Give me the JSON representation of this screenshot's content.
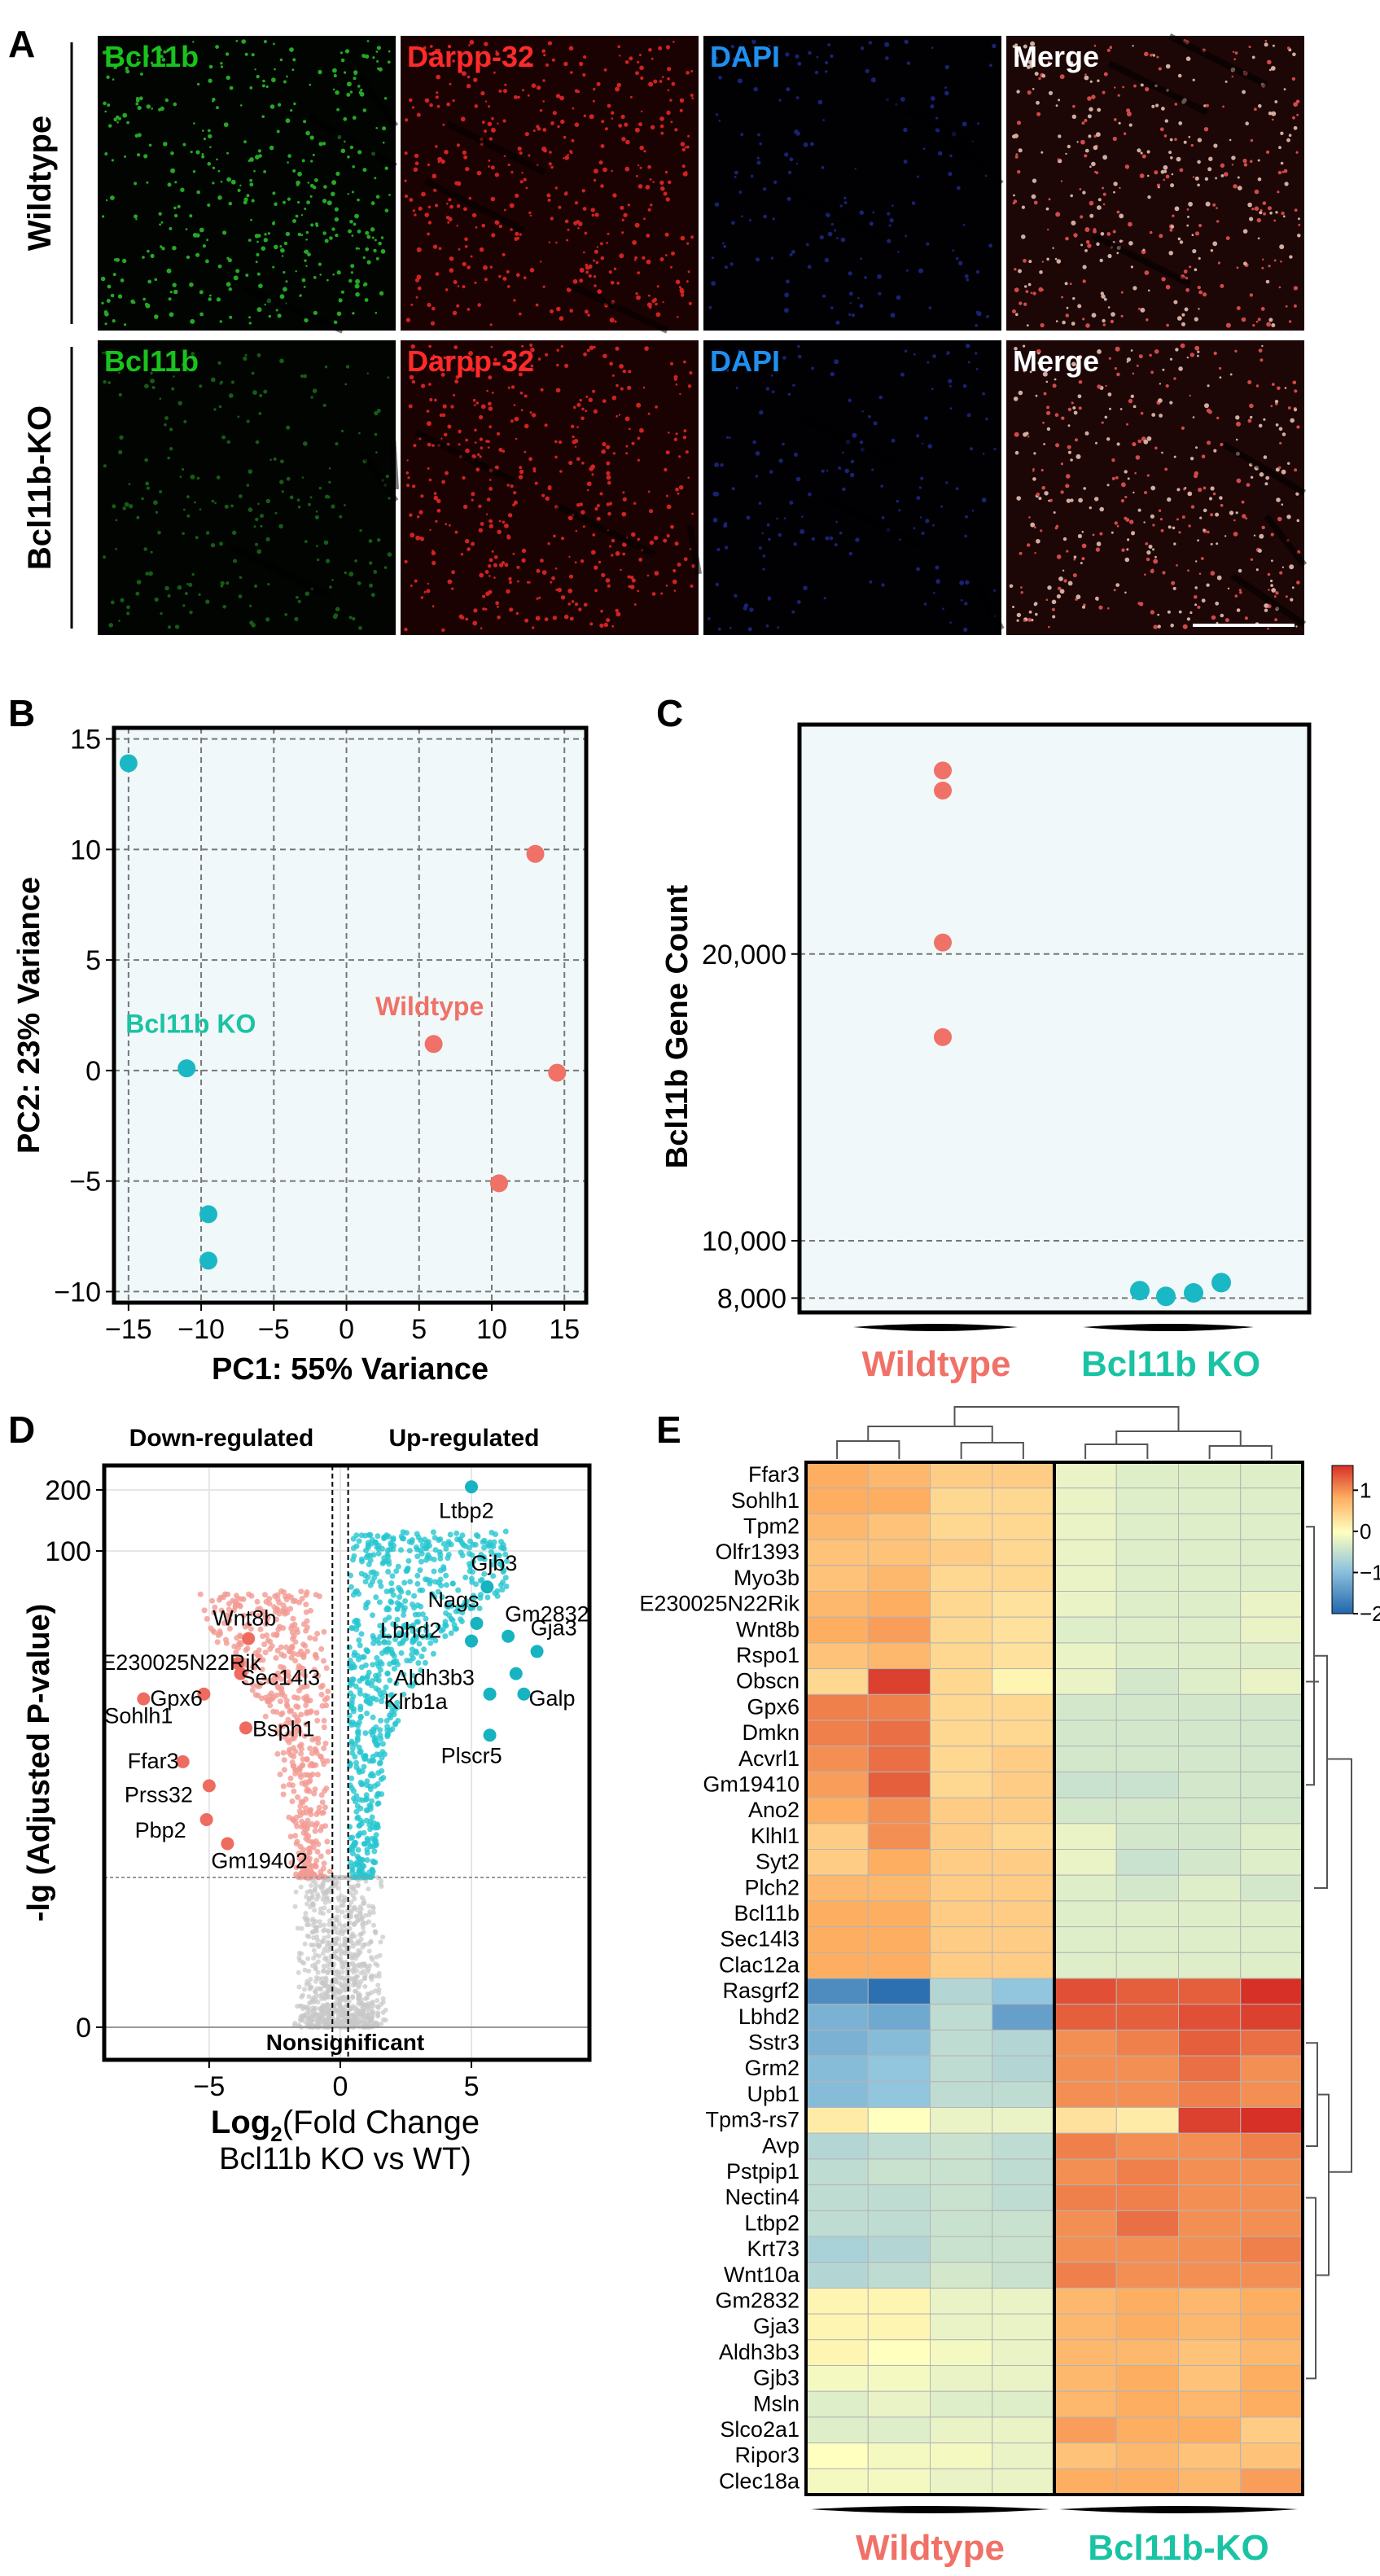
{
  "panelA": {
    "letter": "A",
    "rows": [
      "Wildtype",
      "Bcl11b-KO"
    ],
    "channels": [
      {
        "label": "Bcl11b",
        "color": "#19c21c"
      },
      {
        "label": "Darpp-32",
        "color": "#ff2a2a"
      },
      {
        "label": "DAPI",
        "color": "#1f8ff0"
      },
      {
        "label": "Merge",
        "color": "#ffffff"
      }
    ]
  },
  "panelB": {
    "letter": "B"
  },
  "panelC": {
    "letter": "C"
  },
  "panelD": {
    "letter": "D",
    "down_label": "Down-regulated",
    "up_label": "Up-regulated",
    "nonsig_label": "Nonsignificant"
  },
  "panelE": {
    "letter": "E"
  },
  "colors": {
    "wildtype": "#f07167",
    "ko": "#1ab8c4",
    "ko_text": "#19c3a3",
    "grey": "#c8c8c8"
  },
  "chart_data": [
    {
      "id": "pca",
      "type": "scatter",
      "title": "",
      "xlabel": "PC1: 55% Variance",
      "ylabel": "PC2: 23% Variance",
      "xlim": [
        -16,
        16.5
      ],
      "ylim": [
        -10.5,
        15.5
      ],
      "xticks": [
        -15,
        -10,
        -5,
        0,
        5,
        10,
        15
      ],
      "yticks": [
        -10,
        -5,
        0,
        5,
        10,
        15
      ],
      "xtick_labels": [
        "−15",
        "−10",
        "−5",
        "0",
        "5",
        "10",
        "15"
      ],
      "ytick_labels": [
        "−10",
        "−5",
        "0",
        "5",
        "10",
        "15"
      ],
      "grid": true,
      "series": [
        {
          "name": "Wildtype",
          "x": [
            13,
            6,
            14.5,
            10.5
          ],
          "y": [
            9.8,
            1.2,
            -0.1,
            -5.1
          ]
        },
        {
          "name": "Bcl11b KO",
          "x": [
            -15,
            -11,
            -9.5,
            -9.5
          ],
          "y": [
            13.9,
            0.1,
            -6.5,
            -8.6
          ]
        }
      ],
      "annotations": [
        "Wildtype",
        "Bcl11b KO"
      ]
    },
    {
      "id": "gene_count",
      "type": "scatter",
      "ylabel": "Bcl11b Gene Count",
      "categories": [
        "Wildtype",
        "Bcl11b KO"
      ],
      "ylim": [
        7500,
        28000
      ],
      "yticks": [
        8000,
        10000,
        20000
      ],
      "ytick_labels": [
        "8,000",
        "10,000",
        "20,000"
      ],
      "grid": true,
      "series": [
        {
          "name": "Wildtype",
          "values": [
            26400,
            25700,
            20400,
            17100
          ]
        },
        {
          "name": "Bcl11b KO",
          "values": [
            8260,
            8060,
            8180,
            8540
          ]
        }
      ]
    },
    {
      "id": "volcano",
      "type": "scatter",
      "xlabel_main": "Log",
      "xlabel_sub": "2",
      "xlabel_rest": "(Fold Change",
      "xlabel_line2": "Bcl11b KO vs WT)",
      "ylabel": "-lg (Adjusted P-value)",
      "xlim": [
        -9,
        9.5
      ],
      "xticks": [
        -5,
        0,
        5
      ],
      "xtick_labels": [
        "−5",
        "0",
        "5"
      ],
      "yticks": [
        0,
        100,
        200
      ],
      "ytick_labels": [
        "0",
        "100",
        "200"
      ],
      "significance_threshold": 2,
      "fold_change_threshold": [
        -0.3,
        0.3
      ],
      "labeled_up": [
        {
          "gene": "Ltbp2",
          "x": 5.0,
          "y": 205
        },
        {
          "gene": "Gjb3",
          "x": 5.6,
          "y": 65
        },
        {
          "gene": "Nags",
          "x": 5.2,
          "y": 42
        },
        {
          "gene": "Gm2832",
          "x": 6.4,
          "y": 36
        },
        {
          "gene": "Lbhd2",
          "x": 5.0,
          "y": 34
        },
        {
          "gene": "Gja3",
          "x": 7.5,
          "y": 30
        },
        {
          "gene": "Aldh3b3",
          "x": 6.7,
          "y": 23
        },
        {
          "gene": "Klrb1a",
          "x": 5.7,
          "y": 18
        },
        {
          "gene": "Galp",
          "x": 7.0,
          "y": 18
        },
        {
          "gene": "Plscr5",
          "x": 5.7,
          "y": 11
        }
      ],
      "labeled_down": [
        {
          "gene": "Wnt8b",
          "x": -3.5,
          "y": 35
        },
        {
          "gene": "E230025N22Rik",
          "x": -3.9,
          "y": 26
        },
        {
          "gene": "Sec14l3",
          "x": -3.8,
          "y": 23
        },
        {
          "gene": "Gpx6",
          "x": -5.2,
          "y": 18
        },
        {
          "gene": "Sohlh1",
          "x": -7.5,
          "y": 17
        },
        {
          "gene": "Bsph1",
          "x": -3.6,
          "y": 12
        },
        {
          "gene": "Ffar3",
          "x": -6.0,
          "y": 8
        },
        {
          "gene": "Prss32",
          "x": -5.0,
          "y": 6
        },
        {
          "gene": "Pbp2",
          "x": -5.1,
          "y": 4
        },
        {
          "gene": "Gm19402",
          "x": -4.3,
          "y": 3
        }
      ]
    },
    {
      "id": "heatmap",
      "type": "heatmap",
      "genes": [
        "Ffar3",
        "Sohlh1",
        "Tpm2",
        "Olfr1393",
        "Myo3b",
        "E230025N22Rik",
        "Wnt8b",
        "Rspo1",
        "Obscn",
        "Gpx6",
        "Dmkn",
        "Acvrl1",
        "Gm19410",
        "Ano2",
        "Klhl1",
        "Syt2",
        "Plch2",
        "Bcl11b",
        "Sec14l3",
        "Clac12a",
        "Rasgrf2",
        "Lbhd2",
        "Sstr3",
        "Grm2",
        "Upb1",
        "Tpm3-rs7",
        "Avp",
        "Pstpip1",
        "Nectin4",
        "Ltbp2",
        "Krt73",
        "Wnt10a",
        "Gm2832",
        "Gja3",
        "Aldh3b3",
        "Gjb3",
        "Msln",
        "Slco2a1",
        "Ripor3",
        "Clec18a"
      ],
      "groups": [
        "Wildtype",
        "Bcl11b-KO"
      ],
      "legend_ticks": [
        1,
        0,
        -1,
        -2
      ],
      "legend_tick_labels": [
        "1",
        "0",
        "−1",
        "−2"
      ],
      "color_range": [
        -2,
        1.6
      ],
      "values": [
        [
          0.8,
          0.7,
          0.5,
          0.5,
          -0.2,
          -0.3,
          -0.3,
          -0.3
        ],
        [
          0.8,
          0.8,
          0.4,
          0.4,
          -0.2,
          -0.3,
          -0.3,
          -0.3
        ],
        [
          0.7,
          0.6,
          0.4,
          0.4,
          -0.2,
          -0.3,
          -0.3,
          -0.3
        ],
        [
          0.6,
          0.6,
          0.5,
          0.4,
          -0.2,
          -0.3,
          -0.3,
          -0.3
        ],
        [
          0.6,
          0.7,
          0.4,
          0.4,
          -0.2,
          -0.3,
          -0.3,
          -0.3
        ],
        [
          0.7,
          0.8,
          0.4,
          0.3,
          -0.2,
          -0.3,
          -0.3,
          -0.2
        ],
        [
          0.8,
          0.9,
          0.4,
          0.3,
          -0.3,
          -0.3,
          -0.3,
          -0.2
        ],
        [
          0.6,
          0.7,
          0.4,
          0.3,
          -0.2,
          -0.3,
          -0.3,
          -0.3
        ],
        [
          0.4,
          1.5,
          0.4,
          0.1,
          -0.2,
          -0.4,
          -0.3,
          -0.2
        ],
        [
          1.1,
          1.1,
          0.4,
          0.4,
          -0.4,
          -0.4,
          -0.4,
          -0.4
        ],
        [
          1.1,
          1.2,
          0.4,
          0.4,
          -0.4,
          -0.4,
          -0.4,
          -0.4
        ],
        [
          1.0,
          1.2,
          0.4,
          0.5,
          -0.4,
          -0.4,
          -0.4,
          -0.4
        ],
        [
          0.9,
          1.3,
          0.4,
          0.5,
          -0.5,
          -0.5,
          -0.4,
          -0.4
        ],
        [
          0.8,
          1.0,
          0.5,
          0.5,
          -0.4,
          -0.4,
          -0.4,
          -0.4
        ],
        [
          0.5,
          1.0,
          0.5,
          0.4,
          -0.2,
          -0.4,
          -0.4,
          -0.3
        ],
        [
          0.5,
          0.8,
          0.5,
          0.5,
          -0.2,
          -0.5,
          -0.4,
          -0.3
        ],
        [
          0.7,
          0.7,
          0.5,
          0.5,
          -0.3,
          -0.4,
          -0.3,
          -0.4
        ],
        [
          0.8,
          0.8,
          0.5,
          0.5,
          -0.3,
          -0.3,
          -0.3,
          -0.3
        ],
        [
          0.8,
          0.8,
          0.5,
          0.5,
          -0.3,
          -0.3,
          -0.3,
          -0.3
        ],
        [
          0.8,
          0.8,
          0.5,
          0.5,
          -0.3,
          -0.3,
          -0.3,
          -0.3
        ],
        [
          -1.6,
          -1.9,
          -0.7,
          -1.0,
          1.4,
          1.3,
          1.3,
          1.6
        ],
        [
          -1.2,
          -1.3,
          -0.6,
          -1.4,
          1.3,
          1.3,
          1.4,
          1.5
        ],
        [
          -1.2,
          -1.1,
          -0.6,
          -0.7,
          1.0,
          1.1,
          1.3,
          1.2
        ],
        [
          -1.1,
          -1.0,
          -0.6,
          -0.7,
          1.0,
          1.0,
          1.2,
          1.0
        ],
        [
          -1.1,
          -1.0,
          -0.6,
          -0.6,
          1.0,
          1.0,
          1.1,
          1.0
        ],
        [
          0.2,
          0.0,
          -0.2,
          -0.2,
          0.3,
          0.2,
          1.5,
          1.6
        ],
        [
          -0.7,
          -0.6,
          -0.5,
          -0.6,
          1.1,
          1.0,
          1.0,
          1.1
        ],
        [
          -0.6,
          -0.5,
          -0.5,
          -0.6,
          1.0,
          1.1,
          1.0,
          1.0
        ],
        [
          -0.6,
          -0.6,
          -0.5,
          -0.6,
          1.1,
          1.1,
          1.0,
          1.0
        ],
        [
          -0.6,
          -0.6,
          -0.5,
          -0.5,
          1.0,
          1.2,
          1.0,
          1.0
        ],
        [
          -0.8,
          -0.7,
          -0.5,
          -0.5,
          1.0,
          1.0,
          1.0,
          1.1
        ],
        [
          -0.7,
          -0.6,
          -0.4,
          -0.5,
          1.1,
          1.0,
          1.0,
          1.0
        ],
        [
          0.1,
          0.1,
          -0.2,
          -0.2,
          0.7,
          0.8,
          0.7,
          0.8
        ],
        [
          0.1,
          0.1,
          -0.2,
          -0.2,
          0.7,
          0.8,
          0.7,
          0.8
        ],
        [
          0.1,
          0.0,
          -0.1,
          -0.2,
          0.7,
          0.7,
          0.6,
          0.7
        ],
        [
          -0.1,
          -0.1,
          -0.2,
          -0.2,
          0.7,
          0.8,
          0.6,
          0.8
        ],
        [
          -0.3,
          -0.2,
          -0.3,
          -0.3,
          0.7,
          0.8,
          0.7,
          0.8
        ],
        [
          -0.3,
          -0.3,
          -0.2,
          -0.2,
          0.9,
          0.8,
          0.8,
          0.5
        ],
        [
          0.0,
          -0.1,
          -0.1,
          -0.2,
          0.6,
          0.7,
          0.6,
          0.6
        ],
        [
          -0.1,
          -0.1,
          -0.2,
          -0.2,
          0.8,
          0.8,
          0.7,
          0.9
        ]
      ]
    }
  ]
}
